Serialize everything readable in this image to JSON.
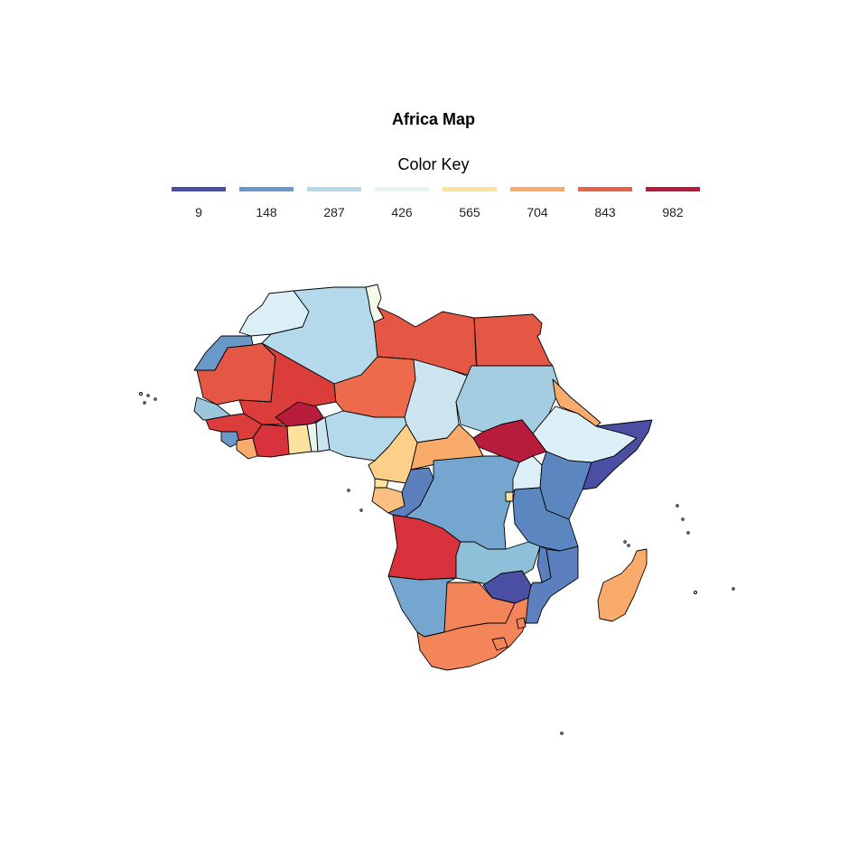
{
  "title": "Africa Map",
  "legend": {
    "title": "Color Key",
    "items": [
      {
        "label": "9",
        "color": "#4A4FA3"
      },
      {
        "label": "148",
        "color": "#6A98C8"
      },
      {
        "label": "287",
        "color": "#B3D9EA"
      },
      {
        "label": "426",
        "color": "#E8F5EC"
      },
      {
        "label": "565",
        "color": "#FDE29F"
      },
      {
        "label": "704",
        "color": "#F8AB6A"
      },
      {
        "label": "843",
        "color": "#E8624A"
      },
      {
        "label": "982",
        "color": "#B81C3C"
      }
    ]
  },
  "countries": [
    {
      "id": "tunisia",
      "color": "#F3FAEA"
    },
    {
      "id": "morocco",
      "color": "#DDEFF6"
    },
    {
      "id": "western-sahara",
      "color": "#6A98C8"
    },
    {
      "id": "algeria",
      "color": "#B3D9EA"
    },
    {
      "id": "libya",
      "color": "#E45744"
    },
    {
      "id": "egypt",
      "color": "#E45744"
    },
    {
      "id": "mauritania",
      "color": "#E45744"
    },
    {
      "id": "mali",
      "color": "#DB3E3A"
    },
    {
      "id": "niger",
      "color": "#EE6A4C"
    },
    {
      "id": "chad",
      "color": "#CBE4F0"
    },
    {
      "id": "sudan",
      "color": "#A4CDE2"
    },
    {
      "id": "south-sudan",
      "color": "#B81C3C"
    },
    {
      "id": "ethiopia",
      "color": "#DDEFF6"
    },
    {
      "id": "somalia",
      "color": "#4A4FA3"
    },
    {
      "id": "eritrea",
      "color": "#F8AB6A"
    },
    {
      "id": "senegal",
      "color": "#9BC6DE"
    },
    {
      "id": "guinea",
      "color": "#DB3E3A"
    },
    {
      "id": "sierra-leone",
      "color": "#6A98C8"
    },
    {
      "id": "liberia",
      "color": "#F8AB6A"
    },
    {
      "id": "cote-divoire",
      "color": "#D8333C"
    },
    {
      "id": "burkina-faso",
      "color": "#B81C3C"
    },
    {
      "id": "ghana",
      "color": "#FDE29F"
    },
    {
      "id": "togo",
      "color": "#E8F5EC"
    },
    {
      "id": "benin",
      "color": "#CBE4F0"
    },
    {
      "id": "nigeria",
      "color": "#B3D9EA"
    },
    {
      "id": "cameroon",
      "color": "#FDD08A"
    },
    {
      "id": "car",
      "color": "#F8AB6A"
    },
    {
      "id": "equatorial-guinea",
      "color": "#FDE29F"
    },
    {
      "id": "gabon",
      "color": "#F9C080"
    },
    {
      "id": "congo",
      "color": "#5C80BD"
    },
    {
      "id": "drc",
      "color": "#74A6CF"
    },
    {
      "id": "uganda",
      "color": "#DDEFF6"
    },
    {
      "id": "kenya",
      "color": "#5C86C0"
    },
    {
      "id": "rwanda",
      "color": "#FDE29F"
    },
    {
      "id": "tanzania",
      "color": "#5C86C0"
    },
    {
      "id": "angola",
      "color": "#D8333C"
    },
    {
      "id": "zambia",
      "color": "#8EC0DA"
    },
    {
      "id": "malawi",
      "color": "#5C80BD"
    },
    {
      "id": "mozambique",
      "color": "#5C80BD"
    },
    {
      "id": "zimbabwe",
      "color": "#4A4FA3"
    },
    {
      "id": "namibia",
      "color": "#74A6CF"
    },
    {
      "id": "botswana",
      "color": "#F4845A"
    },
    {
      "id": "south-africa",
      "color": "#F4845A"
    },
    {
      "id": "lesotho",
      "color": "#F4845A"
    },
    {
      "id": "swaziland",
      "color": "#F4845A"
    },
    {
      "id": "madagascar",
      "color": "#F8AB6A"
    }
  ]
}
